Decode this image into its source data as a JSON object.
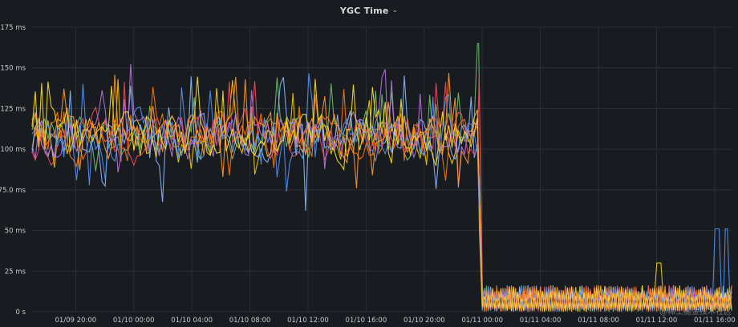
{
  "panel": {
    "title": "YGC Time",
    "menu_icon": "chevron-down-icon"
  },
  "watermark": "@稀土掘金技术社区",
  "chart_data": {
    "type": "line",
    "title": "YGC Time",
    "y_ticks": [
      "0 s",
      "25 ms",
      "50 ms",
      "75.0 ms",
      "100 ms",
      "125 ms",
      "150 ms",
      "175 ms"
    ],
    "ylim_ms": [
      0,
      175
    ],
    "x_ticks": [
      "01/09 20:00",
      "01/10 00:00",
      "01/10 04:00",
      "01/10 08:00",
      "01/10 12:00",
      "01/10 16:00",
      "01/10 20:00",
      "01/11 00:00",
      "01/11 04:00",
      "01/11 08:00",
      "01/11 12:00",
      "01/11 16:00"
    ],
    "xlim": [
      "01/09 17:00",
      "01/11 17:10"
    ],
    "grid": true,
    "colors": [
      "#73bf69",
      "#f2cc0c",
      "#8ab8ff",
      "#ff780a",
      "#f2495c",
      "#5794f2",
      "#b877d9",
      "#fade2a",
      "#ff9830"
    ],
    "series_phase_1": {
      "range": [
        "01/09 17:00",
        "01/10 23:40"
      ],
      "mean_ms": 108,
      "spread_ms": 16,
      "min_ms": 62,
      "max_ms": 165
    },
    "series_phase_2": {
      "range": [
        "01/11 00:00",
        "01/11 17:10"
      ],
      "mean_ms": 8,
      "spread_ms": 7,
      "min_ms": 0,
      "max_ms": 51
    },
    "spikes": [
      {
        "x": "01/10 23:45",
        "y_ms": 165
      },
      {
        "x": "01/10 23:48",
        "y_ms": 50
      },
      {
        "x": "01/10 11:50",
        "y_ms": 62
      },
      {
        "x": "01/11 16:10",
        "y_ms": 51
      },
      {
        "x": "01/11 16:50",
        "y_ms": 51
      },
      {
        "x": "01/11 12:10",
        "y_ms": 30
      }
    ]
  }
}
